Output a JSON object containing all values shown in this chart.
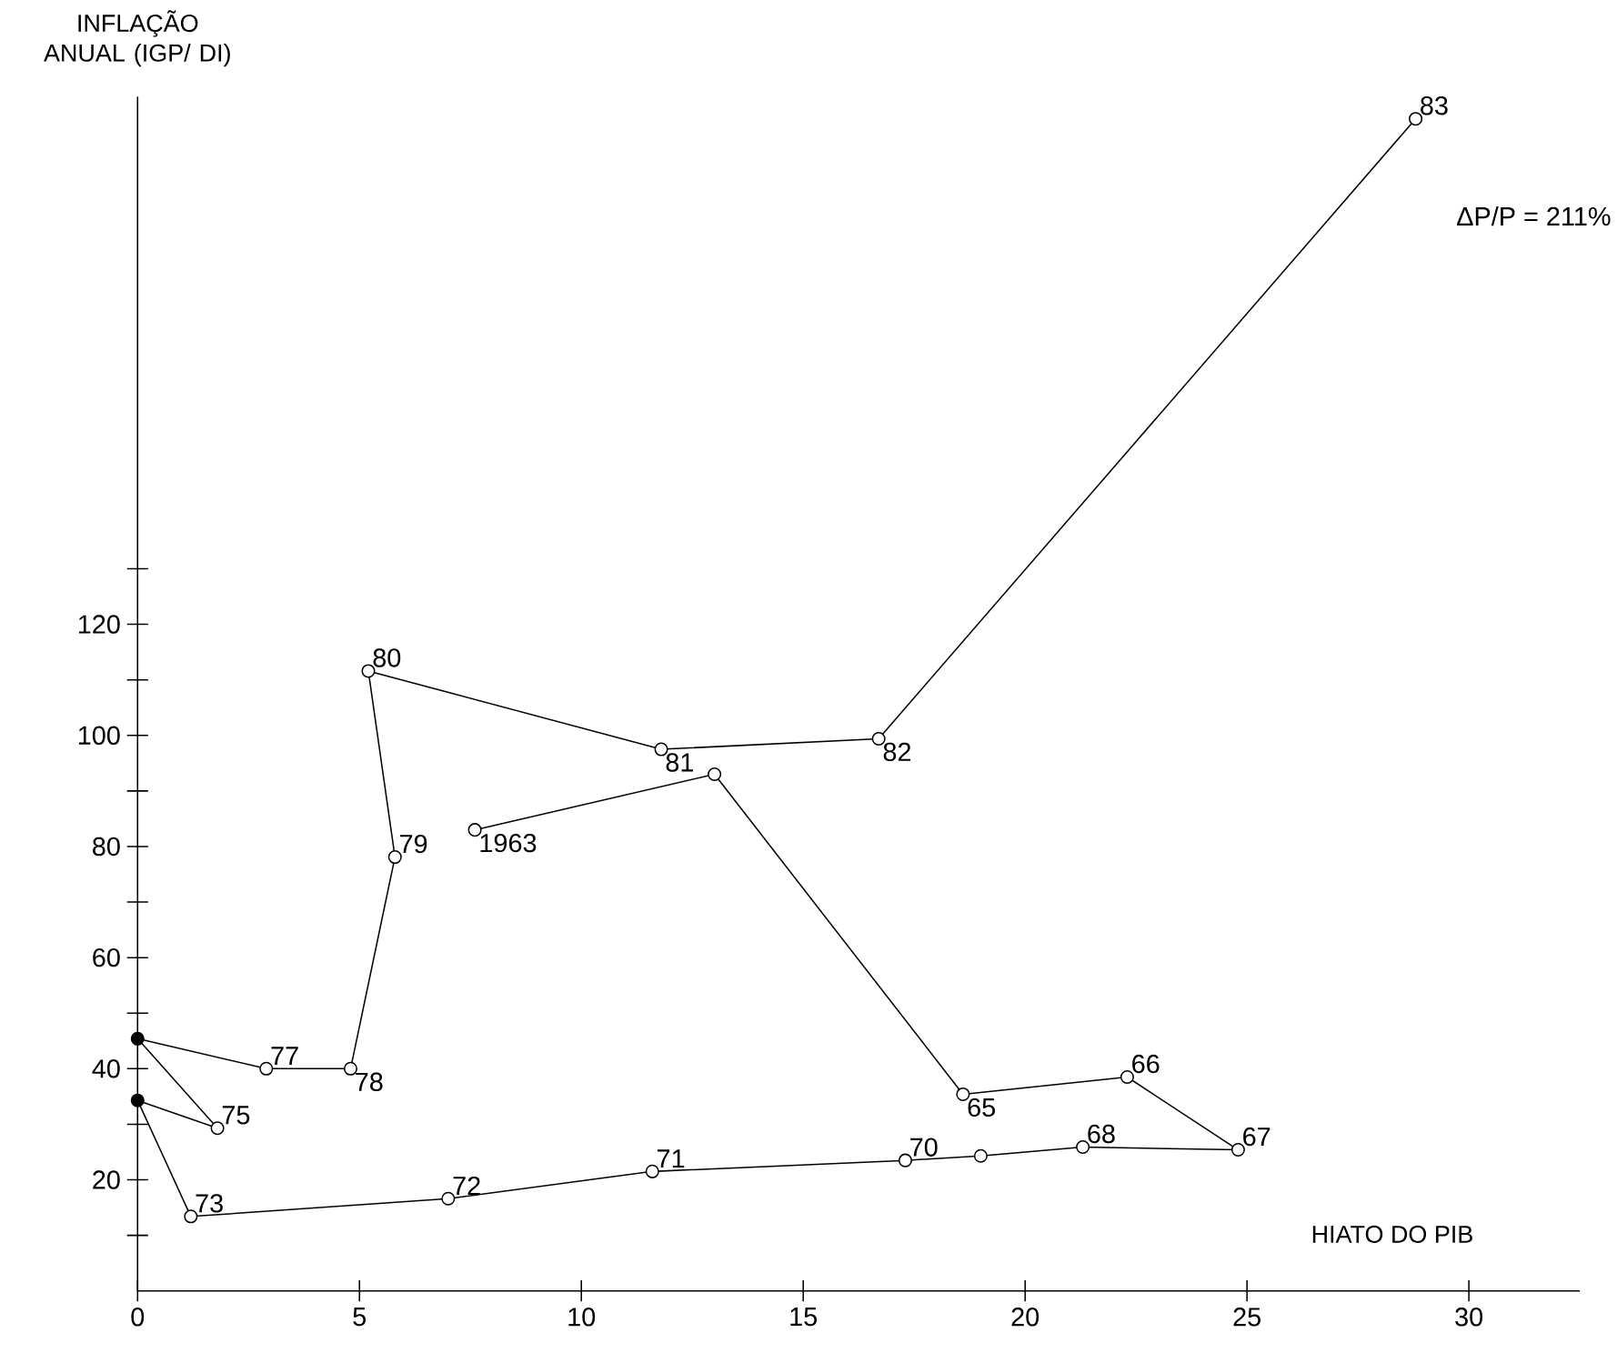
{
  "chart_data": {
    "type": "line",
    "xlabel": "HIATO DO PIB",
    "ylabel": "INFLAÇÃO ANUAL (IGP/ DI)",
    "x": [
      7.6,
      13.0,
      18.6,
      22.3,
      24.8,
      21.3,
      19.0,
      17.3,
      11.6,
      7.0,
      1.2,
      0.0,
      1.8,
      0.0,
      2.9,
      4.8,
      5.8,
      5.2,
      11.8,
      16.7,
      28.8
    ],
    "values": [
      83,
      93,
      35.4,
      38.5,
      25.4,
      25.9,
      24.3,
      23.5,
      21.5,
      16.6,
      13.4,
      34.3,
      29.3,
      45.4,
      40,
      40,
      78.1,
      111.6,
      97.5,
      99.4,
      211
    ],
    "color": "#000000",
    "colors": [
      "#ffffff",
      "#ffffff",
      "#ffffff",
      "#ffffff",
      "#ffffff",
      "#ffffff",
      "#ffffff",
      "#ffffff",
      "#ffffff",
      "#ffffff",
      "#ffffff",
      "#000000",
      "#ffffff",
      "#000000",
      "#ffffff",
      "#ffffff",
      "#ffffff",
      "#ffffff",
      "#ffffff",
      "#ffffff",
      "#ffffff"
    ],
    "marker": "circle",
    "line_style": "solid",
    "xlim": [
      0,
      32.5
    ],
    "ylim": [
      0,
      215
    ],
    "xticks": [
      0,
      5,
      10,
      15,
      20,
      25,
      30
    ],
    "yticks": [
      {
        "value": 10,
        "label": null
      },
      20,
      {
        "value": 30,
        "label": null
      },
      40,
      {
        "value": 50,
        "label": null
      },
      60,
      {
        "value": 70,
        "label": null
      },
      80,
      {
        "value": 90,
        "label": null
      },
      100,
      {
        "value": 110,
        "label": null
      },
      120,
      {
        "value": 130,
        "label": null
      }
    ],
    "annotations": [
      {
        "text": "1963",
        "x": 7.6,
        "y": 83
      },
      {
        "text": "65",
        "x": 18.6,
        "y": 35.4
      },
      {
        "text": "66",
        "x": 22.3,
        "y": 38.5
      },
      {
        "text": "67",
        "x": 24.8,
        "y": 25.4
      },
      {
        "text": "68",
        "x": 21.3,
        "y": 25.9
      },
      {
        "text": "70",
        "x": 17.3,
        "y": 23.5
      },
      {
        "text": "71",
        "x": 11.6,
        "y": 21.5
      },
      {
        "text": "72",
        "x": 7.0,
        "y": 16.6
      },
      {
        "text": "73",
        "x": 1.2,
        "y": 13.4
      },
      {
        "text": "75",
        "x": 1.8,
        "y": 29.3
      },
      {
        "text": "77",
        "x": 2.9,
        "y": 40
      },
      {
        "text": "78",
        "x": 4.8,
        "y": 40
      },
      {
        "text": "79",
        "x": 5.8,
        "y": 78.1
      },
      {
        "text": "80",
        "x": 5.2,
        "y": 111.6
      },
      {
        "text": "81",
        "x": 11.8,
        "y": 97.5
      },
      {
        "text": "82",
        "x": 16.7,
        "y": 99.4
      },
      {
        "text": "83",
        "x": 28.8,
        "y": 211
      },
      "ΔP/P = 211%"
    ]
  }
}
